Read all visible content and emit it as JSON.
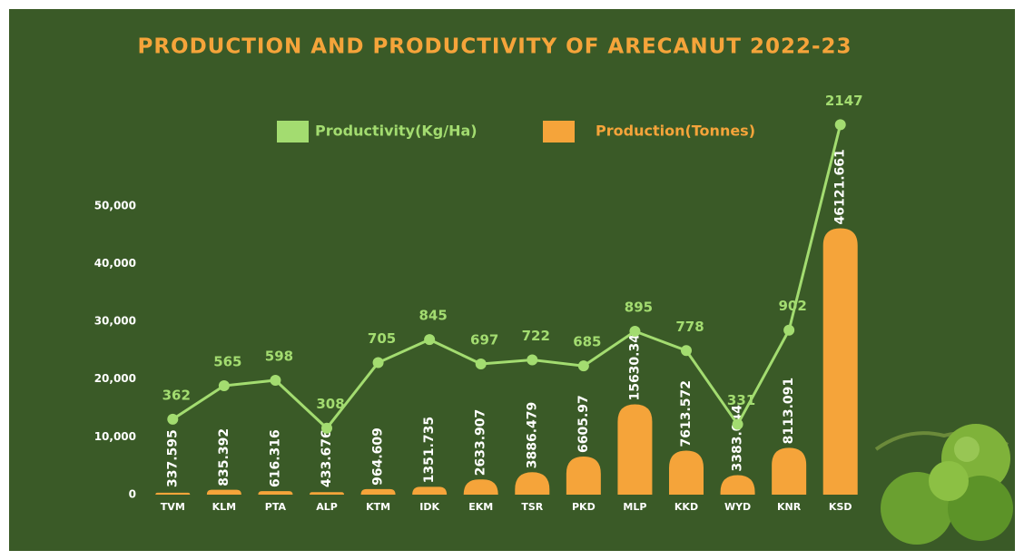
{
  "chart_data": {
    "type": "bar-line",
    "title": "PRODUCTION AND PRODUCTIVITY OF ARECANUT 2022-23",
    "categories": [
      "TVM",
      "KLM",
      "PTA",
      "ALP",
      "KTM",
      "IDK",
      "EKM",
      "TSR",
      "PKD",
      "MLP",
      "KKD",
      "WYD",
      "KNR",
      "KSD"
    ],
    "series": [
      {
        "name": "Productivity(Kg/Ha)",
        "color": "#a3dc70",
        "axis": "y2",
        "type": "line",
        "values": [
          362,
          565,
          598,
          308,
          705,
          845,
          697,
          722,
          685,
          895,
          778,
          331,
          902,
          2147
        ]
      },
      {
        "name": "Production(Tonnes)",
        "color": "#f5a43a",
        "type": "bar",
        "values": [
          337.595,
          835.392,
          616.316,
          433.676,
          964.609,
          1351.735,
          2633.907,
          3886.479,
          6605.97,
          15630.34,
          7613.572,
          3383.044,
          8113.091,
          46121.661
        ]
      }
    ],
    "ylim": [
      0,
      55000
    ],
    "yticks": [
      0,
      {
        "value": 10000,
        "label": "10,000"
      },
      {
        "value": 20000,
        "label": "20,000"
      },
      {
        "value": 30000,
        "label": "30,000"
      },
      {
        "value": 40000,
        "label": "40,000"
      },
      {
        "value": 50000,
        "label": "50,000"
      }
    ],
    "y2lim": [
      -95,
      1830
    ],
    "grid": false
  }
}
